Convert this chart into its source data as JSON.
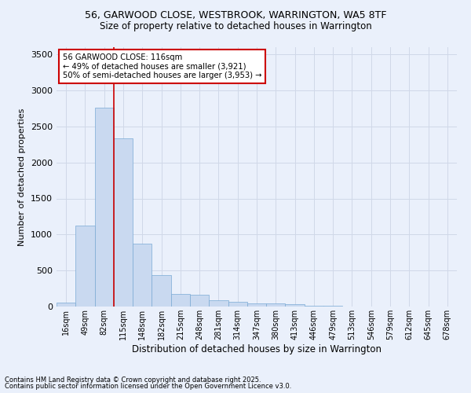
{
  "title_line1": "56, GARWOOD CLOSE, WESTBROOK, WARRINGTON, WA5 8TF",
  "title_line2": "Size of property relative to detached houses in Warrington",
  "xlabel": "Distribution of detached houses by size in Warrington",
  "ylabel": "Number of detached properties",
  "bar_color": "#c9d9f0",
  "bar_edgecolor": "#7aaad4",
  "categories": [
    "16sqm",
    "49sqm",
    "82sqm",
    "115sqm",
    "148sqm",
    "182sqm",
    "215sqm",
    "248sqm",
    "281sqm",
    "314sqm",
    "347sqm",
    "380sqm",
    "413sqm",
    "446sqm",
    "479sqm",
    "513sqm",
    "546sqm",
    "579sqm",
    "612sqm",
    "645sqm",
    "678sqm"
  ],
  "values": [
    50,
    1120,
    2760,
    2330,
    870,
    440,
    170,
    160,
    90,
    65,
    45,
    45,
    30,
    10,
    10,
    0,
    0,
    0,
    0,
    0,
    0
  ],
  "ylim": [
    0,
    3600
  ],
  "yticks": [
    0,
    500,
    1000,
    1500,
    2000,
    2500,
    3000,
    3500
  ],
  "annotation_text": "56 GARWOOD CLOSE: 116sqm\n← 49% of detached houses are smaller (3,921)\n50% of semi-detached houses are larger (3,953) →",
  "annotation_box_color": "#ffffff",
  "annotation_box_edgecolor": "#cc0000",
  "red_line_color": "#cc0000",
  "grid_color": "#d0d8e8",
  "background_color": "#eaf0fb",
  "footer_line1": "Contains HM Land Registry data © Crown copyright and database right 2025.",
  "footer_line2": "Contains public sector information licensed under the Open Government Licence v3.0."
}
